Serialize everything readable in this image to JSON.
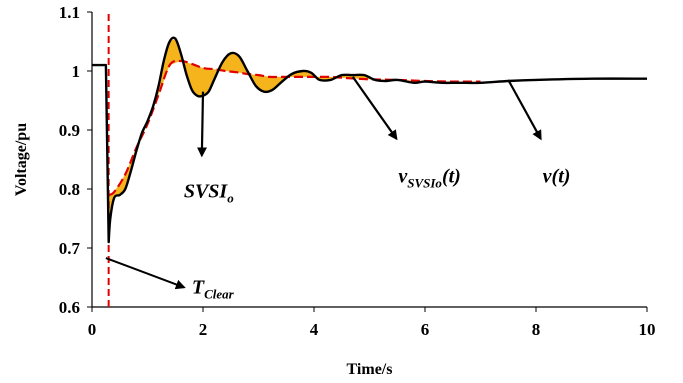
{
  "chart_data": {
    "type": "line",
    "xlabel": "Time/s",
    "ylabel": "Voltage/pu",
    "xlim": [
      0,
      10
    ],
    "ylim": [
      0.6,
      1.1
    ],
    "x_ticks": [
      "0",
      "2",
      "4",
      "6",
      "8",
      "10"
    ],
    "y_ticks": [
      "0.6",
      "0.7",
      "0.8",
      "0.9",
      "1",
      "1.1"
    ],
    "grid": false,
    "colors": {
      "v": "#000000",
      "v_svsi": "#e00000",
      "fill": "#f6b41c",
      "t_clear": "#e00000"
    },
    "series": [
      {
        "name": "v(t)",
        "x": [
          0,
          0.02,
          0.25,
          0.3,
          0.33,
          0.4,
          0.5,
          0.6,
          0.7,
          0.8,
          0.9,
          1.0,
          1.1,
          1.2,
          1.3,
          1.4,
          1.5,
          1.6,
          1.7,
          1.8,
          1.9,
          2.0,
          2.1,
          2.2,
          2.35,
          2.5,
          2.65,
          2.8,
          2.95,
          3.1,
          3.25,
          3.4,
          3.6,
          3.8,
          3.95,
          4.1,
          4.3,
          4.5,
          4.7,
          4.9,
          5.1,
          5.3,
          5.5,
          5.8,
          6.0,
          6.3,
          6.6,
          7.0,
          7.5,
          8.0,
          9.0,
          10.0
        ],
        "values": [
          1.01,
          1.01,
          1.01,
          0.71,
          0.75,
          0.785,
          0.79,
          0.8,
          0.83,
          0.865,
          0.895,
          0.915,
          0.94,
          0.975,
          1.02,
          1.05,
          1.055,
          1.03,
          0.995,
          0.968,
          0.958,
          0.958,
          0.965,
          0.985,
          1.015,
          1.03,
          1.025,
          1.0,
          0.975,
          0.965,
          0.968,
          0.98,
          0.995,
          1.0,
          0.997,
          0.985,
          0.985,
          0.993,
          0.993,
          0.993,
          0.985,
          0.983,
          0.985,
          0.98,
          0.982,
          0.98,
          0.98,
          0.98,
          0.983,
          0.985,
          0.987,
          0.987
        ]
      },
      {
        "name": "v_SVSIo(t)",
        "x": [
          0.3,
          0.4,
          0.6,
          0.8,
          1.0,
          1.2,
          1.4,
          1.6,
          1.8,
          2.0,
          2.2,
          2.4,
          2.6,
          2.8,
          3.0,
          3.2,
          3.4,
          3.6,
          3.8,
          4.0,
          4.3,
          4.6,
          5.0,
          5.5,
          6.0,
          6.5,
          7.0
        ],
        "values": [
          0.79,
          0.795,
          0.825,
          0.87,
          0.91,
          0.96,
          1.01,
          1.017,
          1.012,
          1.005,
          1.003,
          1.0,
          0.998,
          0.995,
          0.993,
          0.99,
          0.99,
          0.99,
          0.99,
          0.99,
          0.99,
          0.988,
          0.986,
          0.985,
          0.983,
          0.982,
          0.982
        ]
      }
    ],
    "t_clear": 0.3,
    "annotations": [
      {
        "text": "SVSI",
        "sub": "o",
        "target": [
          2.0,
          0.965
        ],
        "label_pos": [
          2.7,
          0.84
        ]
      },
      {
        "text": "v",
        "sub": "SVSIo",
        "suffix": "(t)",
        "target": [
          4.7,
          0.99
        ],
        "label_pos": [
          5.7,
          0.865
        ]
      },
      {
        "text": "v",
        "sub": "",
        "suffix": "(t)",
        "target": [
          7.5,
          0.985
        ],
        "label_pos": [
          8.3,
          0.865
        ]
      },
      {
        "text": "T",
        "sub": "Clear",
        "suffix": "",
        "target": [
          0.25,
          0.683
        ],
        "label_pos": [
          1.8,
          0.635
        ]
      }
    ]
  }
}
